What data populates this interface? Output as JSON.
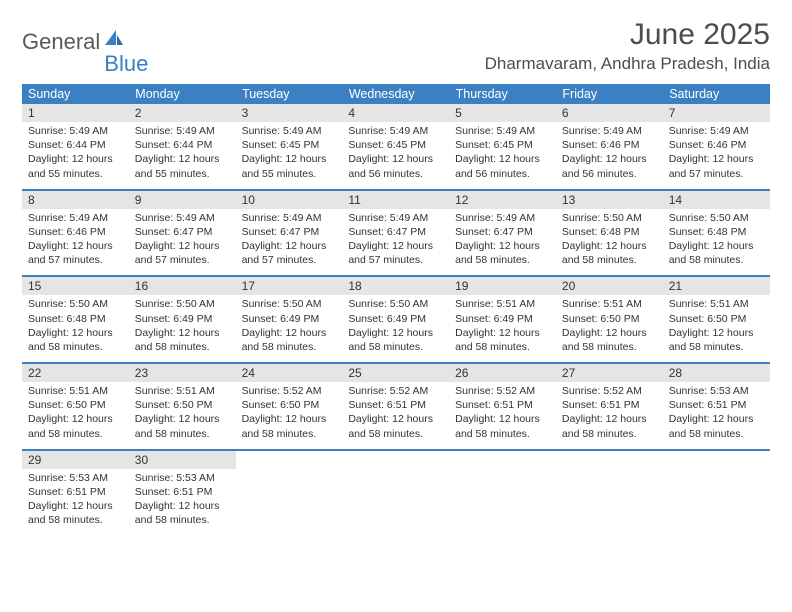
{
  "brand": {
    "text1": "General",
    "text2": "Blue"
  },
  "title": "June 2025",
  "location": "Dharmavaram, Andhra Pradesh, India",
  "colors": {
    "header_bg": "#3a80c3",
    "header_text": "#ffffff",
    "daynum_bg": "#e5e5e5",
    "text": "#333333",
    "divider": "#3a80c3",
    "brand_gray": "#595959",
    "brand_blue": "#3a80c3",
    "title_color": "#4d4d4d"
  },
  "weekdays": [
    "Sunday",
    "Monday",
    "Tuesday",
    "Wednesday",
    "Thursday",
    "Friday",
    "Saturday"
  ],
  "days": [
    {
      "n": "1",
      "sunrise": "5:49 AM",
      "sunset": "6:44 PM",
      "dl": "12 hours and 55 minutes."
    },
    {
      "n": "2",
      "sunrise": "5:49 AM",
      "sunset": "6:44 PM",
      "dl": "12 hours and 55 minutes."
    },
    {
      "n": "3",
      "sunrise": "5:49 AM",
      "sunset": "6:45 PM",
      "dl": "12 hours and 55 minutes."
    },
    {
      "n": "4",
      "sunrise": "5:49 AM",
      "sunset": "6:45 PM",
      "dl": "12 hours and 56 minutes."
    },
    {
      "n": "5",
      "sunrise": "5:49 AM",
      "sunset": "6:45 PM",
      "dl": "12 hours and 56 minutes."
    },
    {
      "n": "6",
      "sunrise": "5:49 AM",
      "sunset": "6:46 PM",
      "dl": "12 hours and 56 minutes."
    },
    {
      "n": "7",
      "sunrise": "5:49 AM",
      "sunset": "6:46 PM",
      "dl": "12 hours and 57 minutes."
    },
    {
      "n": "8",
      "sunrise": "5:49 AM",
      "sunset": "6:46 PM",
      "dl": "12 hours and 57 minutes."
    },
    {
      "n": "9",
      "sunrise": "5:49 AM",
      "sunset": "6:47 PM",
      "dl": "12 hours and 57 minutes."
    },
    {
      "n": "10",
      "sunrise": "5:49 AM",
      "sunset": "6:47 PM",
      "dl": "12 hours and 57 minutes."
    },
    {
      "n": "11",
      "sunrise": "5:49 AM",
      "sunset": "6:47 PM",
      "dl": "12 hours and 57 minutes."
    },
    {
      "n": "12",
      "sunrise": "5:49 AM",
      "sunset": "6:47 PM",
      "dl": "12 hours and 58 minutes."
    },
    {
      "n": "13",
      "sunrise": "5:50 AM",
      "sunset": "6:48 PM",
      "dl": "12 hours and 58 minutes."
    },
    {
      "n": "14",
      "sunrise": "5:50 AM",
      "sunset": "6:48 PM",
      "dl": "12 hours and 58 minutes."
    },
    {
      "n": "15",
      "sunrise": "5:50 AM",
      "sunset": "6:48 PM",
      "dl": "12 hours and 58 minutes."
    },
    {
      "n": "16",
      "sunrise": "5:50 AM",
      "sunset": "6:49 PM",
      "dl": "12 hours and 58 minutes."
    },
    {
      "n": "17",
      "sunrise": "5:50 AM",
      "sunset": "6:49 PM",
      "dl": "12 hours and 58 minutes."
    },
    {
      "n": "18",
      "sunrise": "5:50 AM",
      "sunset": "6:49 PM",
      "dl": "12 hours and 58 minutes."
    },
    {
      "n": "19",
      "sunrise": "5:51 AM",
      "sunset": "6:49 PM",
      "dl": "12 hours and 58 minutes."
    },
    {
      "n": "20",
      "sunrise": "5:51 AM",
      "sunset": "6:50 PM",
      "dl": "12 hours and 58 minutes."
    },
    {
      "n": "21",
      "sunrise": "5:51 AM",
      "sunset": "6:50 PM",
      "dl": "12 hours and 58 minutes."
    },
    {
      "n": "22",
      "sunrise": "5:51 AM",
      "sunset": "6:50 PM",
      "dl": "12 hours and 58 minutes."
    },
    {
      "n": "23",
      "sunrise": "5:51 AM",
      "sunset": "6:50 PM",
      "dl": "12 hours and 58 minutes."
    },
    {
      "n": "24",
      "sunrise": "5:52 AM",
      "sunset": "6:50 PM",
      "dl": "12 hours and 58 minutes."
    },
    {
      "n": "25",
      "sunrise": "5:52 AM",
      "sunset": "6:51 PM",
      "dl": "12 hours and 58 minutes."
    },
    {
      "n": "26",
      "sunrise": "5:52 AM",
      "sunset": "6:51 PM",
      "dl": "12 hours and 58 minutes."
    },
    {
      "n": "27",
      "sunrise": "5:52 AM",
      "sunset": "6:51 PM",
      "dl": "12 hours and 58 minutes."
    },
    {
      "n": "28",
      "sunrise": "5:53 AM",
      "sunset": "6:51 PM",
      "dl": "12 hours and 58 minutes."
    },
    {
      "n": "29",
      "sunrise": "5:53 AM",
      "sunset": "6:51 PM",
      "dl": "12 hours and 58 minutes."
    },
    {
      "n": "30",
      "sunrise": "5:53 AM",
      "sunset": "6:51 PM",
      "dl": "12 hours and 58 minutes."
    }
  ],
  "labels": {
    "sunrise": "Sunrise:",
    "sunset": "Sunset:",
    "daylight": "Daylight:"
  },
  "layout": {
    "first_weekday_index": 0,
    "weeks": 5,
    "cols": 7
  }
}
